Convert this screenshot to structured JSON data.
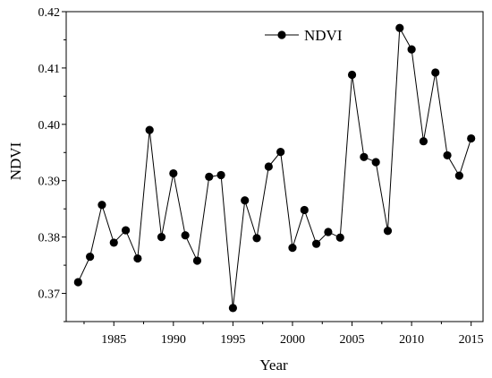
{
  "chart_data": {
    "type": "line",
    "title": "",
    "xlabel": "Year",
    "ylabel": "NDVI",
    "xlim": [
      1981,
      2016
    ],
    "ylim": [
      0.365,
      0.42
    ],
    "x_ticks": [
      1985,
      1990,
      1995,
      2000,
      2005,
      2010,
      2015
    ],
    "y_ticks": [
      0.37,
      0.38,
      0.39,
      0.4,
      0.41,
      0.42
    ],
    "y_tick_labels": [
      "0.37",
      "0.38",
      "0.39",
      "0.40",
      "0.41",
      "0.42"
    ],
    "grid": false,
    "legend_position": "top-center",
    "series": [
      {
        "name": "NDVI",
        "color": "#000000",
        "marker": "circle",
        "x": [
          1982,
          1983,
          1984,
          1985,
          1986,
          1987,
          1988,
          1989,
          1990,
          1991,
          1992,
          1993,
          1994,
          1995,
          1996,
          1997,
          1998,
          1999,
          2000,
          2001,
          2002,
          2003,
          2004,
          2005,
          2006,
          2007,
          2008,
          2009,
          2010,
          2011,
          2012,
          2013,
          2014,
          2015
        ],
        "values": [
          0.372,
          0.3765,
          0.3857,
          0.379,
          0.3812,
          0.3762,
          0.399,
          0.38,
          0.3913,
          0.3803,
          0.3758,
          0.3907,
          0.391,
          0.3674,
          0.3865,
          0.3798,
          0.3925,
          0.3951,
          0.3781,
          0.3848,
          0.3788,
          0.3809,
          0.3799,
          0.4088,
          0.3942,
          0.3933,
          0.3811,
          0.4171,
          0.4133,
          0.397,
          0.4092,
          0.3945,
          0.3909,
          0.3975
        ]
      }
    ]
  }
}
